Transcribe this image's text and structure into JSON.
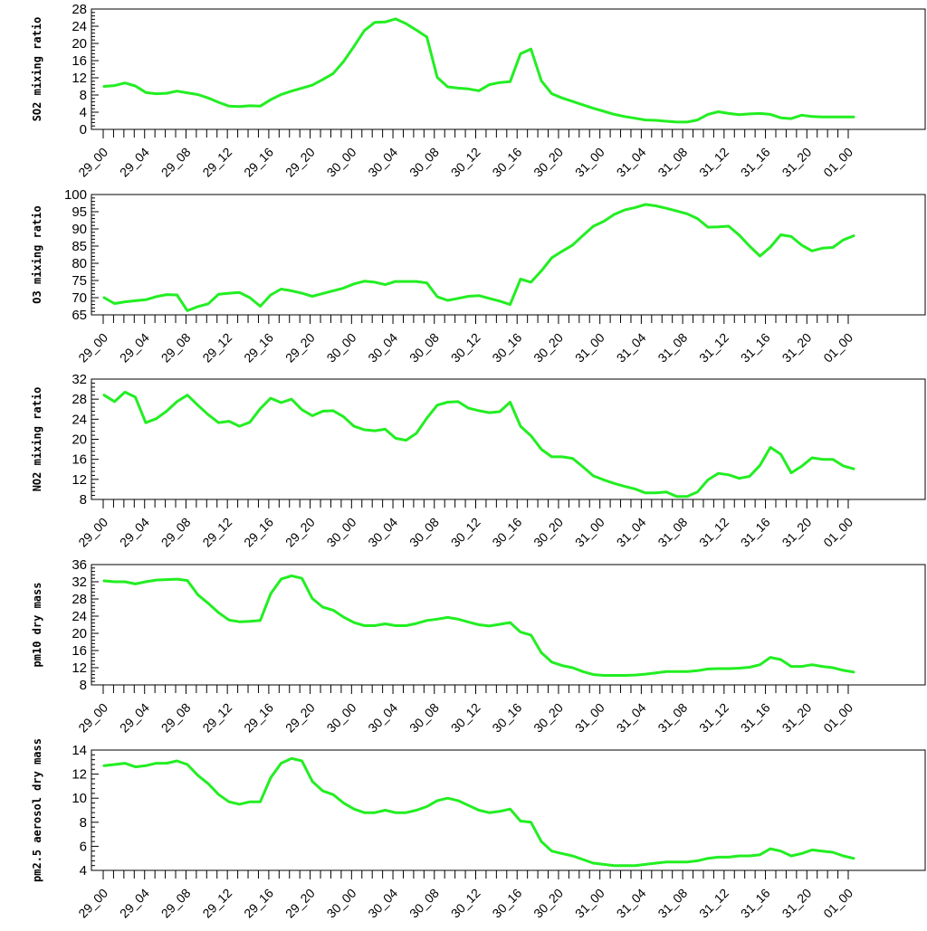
{
  "chart_data": [
    {
      "type": "line",
      "ylabel": "SO2 mixing ratio",
      "ylim": [
        0,
        28
      ],
      "yticks": [
        0,
        4,
        8,
        12,
        16,
        20,
        24,
        28
      ],
      "color": "#22ee22",
      "xticklabels": [
        "29_00",
        "29_04",
        "29_08",
        "29_12",
        "29_16",
        "29_20",
        "30_00",
        "30_04",
        "30_08",
        "30_12",
        "30_16",
        "30_20",
        "31_00",
        "31_04",
        "31_08",
        "31_12",
        "31_16",
        "31_20",
        "01_00"
      ],
      "values": [
        10.0,
        10.2,
        10.8,
        10.1,
        8.6,
        8.3,
        8.4,
        8.9,
        8.5,
        8.1,
        7.3,
        6.3,
        5.4,
        5.3,
        5.5,
        5.4,
        6.9,
        8.1,
        8.9,
        9.6,
        10.3,
        11.6,
        13.0,
        15.8,
        19.3,
        23.0,
        24.9,
        25.0,
        25.7,
        24.6,
        23.1,
        21.5,
        12.1,
        9.9,
        9.6,
        9.4,
        9.0,
        10.4,
        10.9,
        11.1,
        17.6,
        18.7,
        11.3,
        8.3,
        7.3,
        6.5,
        5.7,
        4.9,
        4.2,
        3.5,
        3.0,
        2.6,
        2.2,
        2.1,
        1.9,
        1.7,
        1.7,
        2.2,
        3.5,
        4.1,
        3.7,
        3.4,
        3.6,
        3.7,
        3.5,
        2.7,
        2.5,
        3.3,
        3.0,
        2.9,
        2.9,
        2.9,
        2.9
      ]
    },
    {
      "type": "line",
      "ylabel": "O3 mixing ratio",
      "ylim": [
        65,
        100
      ],
      "yticks": [
        65,
        70,
        75,
        80,
        85,
        90,
        95,
        100
      ],
      "color": "#22ee22",
      "xticklabels": [
        "29_00",
        "29_04",
        "29_08",
        "29_12",
        "29_16",
        "29_20",
        "30_00",
        "30_04",
        "30_08",
        "30_12",
        "30_16",
        "30_20",
        "31_00",
        "31_04",
        "31_08",
        "31_12",
        "31_16",
        "31_20",
        "01_00"
      ],
      "values": [
        70.0,
        68.3,
        68.8,
        69.1,
        69.4,
        70.3,
        70.9,
        70.8,
        66.2,
        67.4,
        68.2,
        71.0,
        71.3,
        71.5,
        70.0,
        67.5,
        70.8,
        72.5,
        72.0,
        71.3,
        70.4,
        71.2,
        72.0,
        72.8,
        74.0,
        74.8,
        74.5,
        73.8,
        74.7,
        74.7,
        74.7,
        74.3,
        70.3,
        69.2,
        69.8,
        70.4,
        70.6,
        69.8,
        69.0,
        68.0,
        75.4,
        74.5,
        77.8,
        81.6,
        83.5,
        85.3,
        88.1,
        90.8,
        92.2,
        94.2,
        95.5,
        96.2,
        97.1,
        96.7,
        96.0,
        95.2,
        94.4,
        93.0,
        90.5,
        90.6,
        90.8,
        88.2,
        85.0,
        82.1,
        84.7,
        88.3,
        87.8,
        85.3,
        83.6,
        84.4,
        84.6,
        86.8,
        88.0
      ]
    },
    {
      "type": "line",
      "ylabel": "NO2 mixing ratio",
      "ylim": [
        8,
        32
      ],
      "yticks": [
        8,
        12,
        16,
        20,
        24,
        28,
        32
      ],
      "color": "#22ee22",
      "xticklabels": [
        "29_00",
        "29_04",
        "29_08",
        "29_12",
        "29_16",
        "29_20",
        "30_00",
        "30_04",
        "30_08",
        "30_12",
        "30_16",
        "30_20",
        "31_00",
        "31_04",
        "31_08",
        "31_12",
        "31_16",
        "31_20",
        "01_00"
      ],
      "values": [
        28.8,
        27.5,
        29.4,
        28.4,
        23.3,
        24.1,
        25.6,
        27.5,
        28.8,
        26.8,
        24.9,
        23.3,
        23.6,
        22.6,
        23.4,
        26.1,
        28.2,
        27.3,
        28.0,
        25.9,
        24.7,
        25.6,
        25.7,
        24.5,
        22.6,
        21.9,
        21.7,
        22.0,
        20.2,
        19.8,
        21.2,
        24.2,
        26.8,
        27.4,
        27.5,
        26.2,
        25.7,
        25.3,
        25.5,
        27.4,
        22.6,
        20.7,
        18.0,
        16.5,
        16.5,
        16.2,
        14.5,
        12.7,
        11.9,
        11.2,
        10.6,
        10.1,
        9.3,
        9.3,
        9.5,
        8.6,
        8.6,
        9.5,
        11.9,
        13.2,
        12.9,
        12.2,
        12.6,
        14.8,
        18.4,
        17.0,
        13.3,
        14.6,
        16.3,
        16.0,
        16.0,
        14.7,
        14.1
      ]
    },
    {
      "type": "line",
      "ylabel": "pm10 dry mass",
      "ylim": [
        8,
        36
      ],
      "yticks": [
        8,
        12,
        16,
        20,
        24,
        28,
        32,
        36
      ],
      "color": "#22ee22",
      "xticklabels": [
        "29_00",
        "29_04",
        "29_08",
        "29_12",
        "29_16",
        "29_20",
        "30_00",
        "30_04",
        "30_08",
        "30_12",
        "30_16",
        "30_20",
        "31_00",
        "31_04",
        "31_08",
        "31_12",
        "31_16",
        "31_20",
        "01_00"
      ],
      "values": [
        32.2,
        32.0,
        32.0,
        31.5,
        32.0,
        32.4,
        32.5,
        32.6,
        32.3,
        29.0,
        27.0,
        24.8,
        23.1,
        22.7,
        22.8,
        23.0,
        29.2,
        32.6,
        33.4,
        32.8,
        28.1,
        26.1,
        25.4,
        23.8,
        22.5,
        21.8,
        21.8,
        22.2,
        21.8,
        21.8,
        22.3,
        23.0,
        23.3,
        23.7,
        23.3,
        22.6,
        22.0,
        21.7,
        22.1,
        22.5,
        20.3,
        19.6,
        15.5,
        13.3,
        12.5,
        12.0,
        11.1,
        10.4,
        10.2,
        10.2,
        10.2,
        10.3,
        10.5,
        10.8,
        11.1,
        11.1,
        11.1,
        11.3,
        11.7,
        11.8,
        11.8,
        11.9,
        12.1,
        12.7,
        14.4,
        13.9,
        12.3,
        12.3,
        12.7,
        12.3,
        12.0,
        11.4,
        11.0
      ]
    },
    {
      "type": "line",
      "ylabel": "pm2.5 aerosol dry mass",
      "ylim": [
        4,
        14
      ],
      "yticks": [
        4,
        6,
        8,
        10,
        12,
        14
      ],
      "color": "#22ee22",
      "xticklabels": [
        "29_00",
        "29_04",
        "29_08",
        "29_12",
        "29_16",
        "29_20",
        "30_00",
        "30_04",
        "30_08",
        "30_12",
        "30_16",
        "30_20",
        "31_00",
        "31_04",
        "31_08",
        "31_12",
        "31_16",
        "31_20",
        "01_00"
      ],
      "values": [
        12.7,
        12.8,
        12.9,
        12.6,
        12.7,
        12.9,
        12.9,
        13.1,
        12.8,
        11.9,
        11.2,
        10.3,
        9.7,
        9.5,
        9.7,
        9.7,
        11.7,
        12.9,
        13.3,
        13.1,
        11.4,
        10.6,
        10.3,
        9.6,
        9.1,
        8.8,
        8.8,
        9.0,
        8.8,
        8.8,
        9.0,
        9.3,
        9.8,
        10.0,
        9.8,
        9.4,
        9.0,
        8.8,
        8.9,
        9.1,
        8.1,
        8.0,
        6.4,
        5.6,
        5.4,
        5.2,
        4.9,
        4.6,
        4.5,
        4.4,
        4.4,
        4.4,
        4.5,
        4.6,
        4.7,
        4.7,
        4.7,
        4.8,
        5.0,
        5.1,
        5.1,
        5.2,
        5.2,
        5.3,
        5.8,
        5.6,
        5.2,
        5.4,
        5.7,
        5.6,
        5.5,
        5.2,
        5.0
      ]
    }
  ]
}
